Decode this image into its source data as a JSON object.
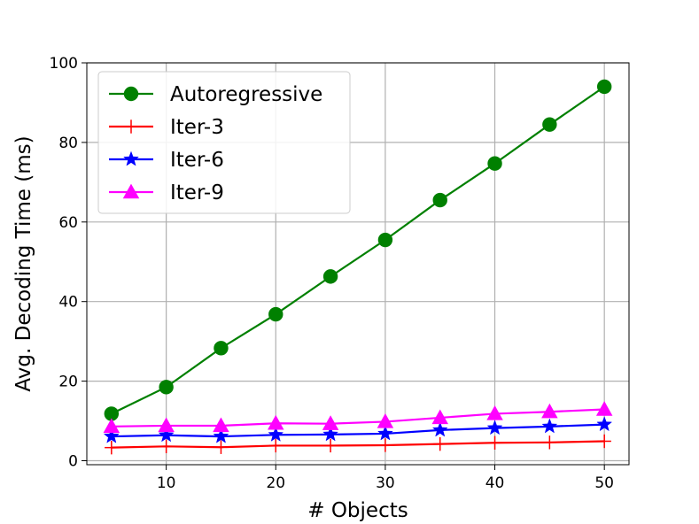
{
  "chart_data": {
    "type": "line",
    "xlabel": "# Objects",
    "ylabel": "Avg. Decoding Time (ms)",
    "x": [
      5,
      10,
      15,
      20,
      25,
      30,
      35,
      40,
      45,
      50
    ],
    "xlim": [
      2.75,
      52.25
    ],
    "ylim": [
      -1,
      100
    ],
    "xticks": [
      "10",
      "20",
      "30",
      "40",
      "50"
    ],
    "yticks": [
      "0",
      "20",
      "40",
      "60",
      "80",
      "100"
    ],
    "grid": true,
    "legend_position": "top-left",
    "series": [
      {
        "name": "Autoregressive",
        "color": "#008000",
        "marker": "circle",
        "values": [
          11.8,
          18.5,
          28.3,
          36.8,
          46.3,
          55.5,
          65.5,
          74.7,
          84.5,
          94.0
        ]
      },
      {
        "name": "Iter-3",
        "color": "#ff0000",
        "marker": "plus",
        "values": [
          3.3,
          3.6,
          3.4,
          3.8,
          3.8,
          3.9,
          4.2,
          4.5,
          4.6,
          4.9
        ]
      },
      {
        "name": "Iter-6",
        "color": "#0000ff",
        "marker": "star",
        "values": [
          6.1,
          6.4,
          6.1,
          6.5,
          6.6,
          6.8,
          7.7,
          8.2,
          8.6,
          9.1
        ]
      },
      {
        "name": "Iter-9",
        "color": "#ff00ff",
        "marker": "triangle",
        "values": [
          8.6,
          8.8,
          8.8,
          9.4,
          9.3,
          9.8,
          10.8,
          11.8,
          12.3,
          12.9
        ]
      }
    ]
  }
}
